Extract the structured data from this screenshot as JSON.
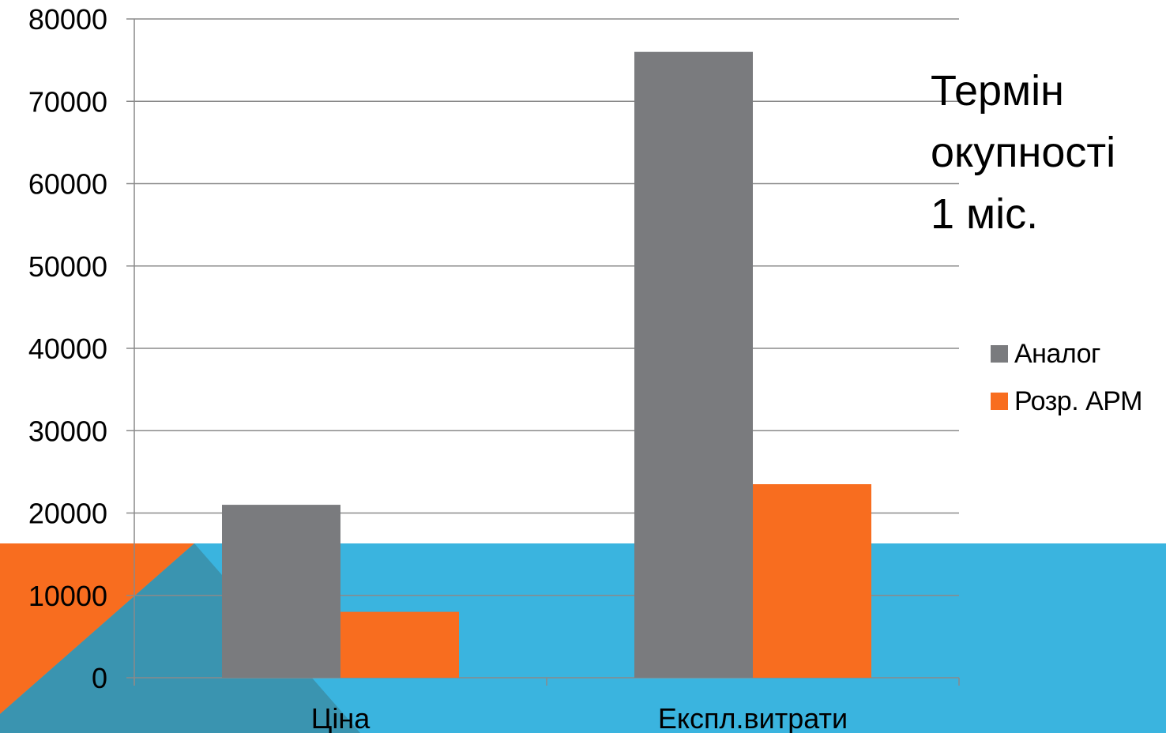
{
  "chart_data": {
    "type": "bar",
    "categories": [
      "Ціна",
      "Експл.витрати"
    ],
    "series": [
      {
        "name": "Аналог",
        "values": [
          21000,
          76000
        ],
        "color": "#7a7b7e"
      },
      {
        "name": "Розр. АРМ",
        "values": [
          8000,
          23500
        ],
        "color": "#f86d1f"
      }
    ],
    "ylim": [
      0,
      80000
    ],
    "yticks": [
      "0",
      "10000",
      "20000",
      "30000",
      "40000",
      "50000",
      "60000",
      "70000",
      "80000"
    ],
    "grid": true,
    "legend": "right",
    "annotation": [
      "Термін",
      "окупності",
      "1 міс."
    ]
  },
  "theme": {
    "accent_blue": "#3ab4df",
    "accent_orange": "#f86d1f",
    "accent_teal": "#3a94b0"
  }
}
